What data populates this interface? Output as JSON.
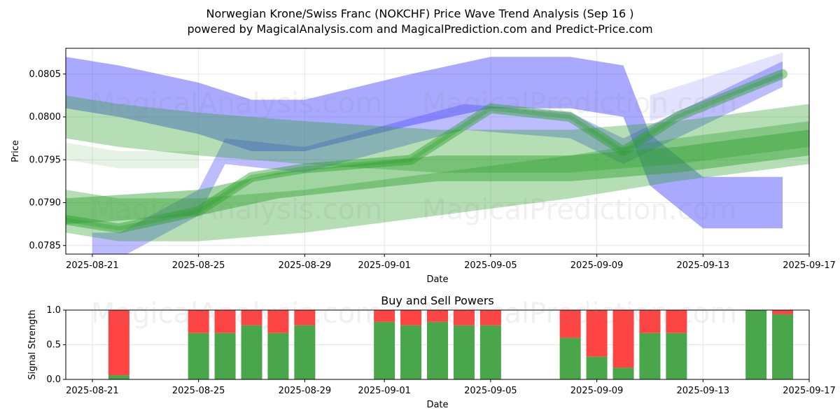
{
  "title_line1": "Norwegian Krone/Swiss Franc (NOKCHF) Price Wave Trend Analysis (Sep 16 )",
  "title_line2": "powered by MagicalAnalysis.com and MagicalPrediction.com and Predict-Price.com",
  "watermarks": [
    "MagicalAnalysis.com",
    "MagicalPrediction.com"
  ],
  "colors": {
    "green": "#2ca02c",
    "blue": "#4040ff",
    "buy": "#4aa64a",
    "sell": "#ff4444"
  },
  "chart_data": [
    {
      "type": "area",
      "xlabel": "Date",
      "ylabel": "Price",
      "ylim": [
        0.0784,
        0.0808
      ],
      "xlim": [
        "2025-08-20",
        "2025-09-17"
      ],
      "x_ticks": [
        "2025-08-21",
        "2025-08-25",
        "2025-08-29",
        "2025-09-01",
        "2025-09-05",
        "2025-09-09",
        "2025-09-13",
        "2025-09-17"
      ],
      "y_ticks": [
        "0.0785",
        "0.0790",
        "0.0795",
        "0.0800",
        "0.0805"
      ],
      "grid": true,
      "bands": [
        {
          "color": "blue",
          "opacity": 0.45,
          "x": [
            "2025-08-20",
            "2025-08-22",
            "2025-08-25",
            "2025-08-27",
            "2025-08-29",
            "2025-09-02",
            "2025-09-05",
            "2025-09-08",
            "2025-09-10",
            "2025-09-11",
            "2025-09-13",
            "2025-09-16"
          ],
          "y": [
            0.0804,
            0.0803,
            0.0801,
            0.0799,
            0.0799,
            0.0802,
            0.0804,
            0.0804,
            0.0803,
            0.0795,
            0.079,
            0.079
          ],
          "width": 0.0006
        },
        {
          "color": "blue",
          "opacity": 0.35,
          "x": [
            "2025-08-21",
            "2025-08-22",
            "2025-08-25",
            "2025-08-26",
            "2025-08-29",
            "2025-09-04",
            "2025-09-08",
            "2025-09-10",
            "2025-09-12",
            "2025-09-16"
          ],
          "y": [
            0.0785,
            0.0785,
            0.079,
            0.0796,
            0.0795,
            0.08,
            0.0799,
            0.0796,
            0.0799,
            0.0805
          ],
          "width": 0.0003
        },
        {
          "color": "blue",
          "opacity": 0.15,
          "x": [
            "2025-09-11",
            "2025-09-13",
            "2025-09-16"
          ],
          "y": [
            0.0801,
            0.0803,
            0.0806
          ],
          "width": 0.0003
        },
        {
          "color": "green",
          "opacity": 0.35,
          "x": [
            "2025-08-20",
            "2025-08-22",
            "2025-08-25",
            "2025-08-29",
            "2025-09-03",
            "2025-09-08",
            "2025-09-12",
            "2025-09-17"
          ],
          "y": [
            0.08,
            0.0799,
            0.0798,
            0.0797,
            0.0796,
            0.0796,
            0.0797,
            0.0799
          ],
          "width": 0.0005
        },
        {
          "color": "green",
          "opacity": 0.35,
          "x": [
            "2025-08-20",
            "2025-08-22",
            "2025-08-25",
            "2025-08-29",
            "2025-09-03",
            "2025-09-08",
            "2025-09-12",
            "2025-09-17"
          ],
          "y": [
            0.0789,
            0.0788,
            0.0788,
            0.0789,
            0.0791,
            0.0793,
            0.0795,
            0.0797
          ],
          "width": 0.0005
        },
        {
          "color": "green",
          "opacity": 0.45,
          "x": [
            "2025-08-20",
            "2025-08-25",
            "2025-08-28",
            "2025-09-03",
            "2025-09-08",
            "2025-09-12",
            "2025-09-17"
          ],
          "y": [
            0.0789,
            0.079,
            0.0792,
            0.0794,
            0.0794,
            0.0795,
            0.0797
          ],
          "width": 0.0003
        },
        {
          "color": "green",
          "opacity": 0.12,
          "x": [
            "2025-08-20",
            "2025-08-22",
            "2025-08-25"
          ],
          "y": [
            0.0796,
            0.0795,
            0.0795
          ],
          "width": 0.0002
        }
      ],
      "wave_lines": [
        {
          "x": [
            "2025-08-20",
            "2025-08-22",
            "2025-08-25",
            "2025-08-27",
            "2025-08-29",
            "2025-09-02",
            "2025-09-03",
            "2025-09-05",
            "2025-09-08",
            "2025-09-10",
            "2025-09-12",
            "2025-09-16"
          ],
          "y": [
            0.0788,
            0.0787,
            0.0789,
            0.0793,
            0.0794,
            0.0795,
            0.0797,
            0.0801,
            0.08,
            0.0796,
            0.08,
            0.0805
          ]
        }
      ]
    },
    {
      "type": "bar",
      "title": "Buy and Sell Powers",
      "xlabel": "Date",
      "ylabel": "Signal Strength",
      "ylim": [
        0,
        1
      ],
      "y_ticks": [
        "0.0",
        "0.5",
        "1.0"
      ],
      "x_ticks": [
        "2025-08-21",
        "2025-08-25",
        "2025-08-29",
        "2025-09-01",
        "2025-09-05",
        "2025-09-09",
        "2025-09-13",
        "2025-09-17"
      ],
      "categories": [
        "2025-08-22",
        "2025-08-25",
        "2025-08-26",
        "2025-08-27",
        "2025-08-28",
        "2025-08-29",
        "2025-09-01",
        "2025-09-02",
        "2025-09-03",
        "2025-09-04",
        "2025-09-05",
        "2025-09-08",
        "2025-09-09",
        "2025-09-10",
        "2025-09-11",
        "2025-09-12",
        "2025-09-15",
        "2025-09-16"
      ],
      "series": [
        {
          "name": "Buy",
          "values": [
            0.06,
            0.67,
            0.67,
            0.78,
            0.67,
            0.78,
            0.83,
            0.78,
            0.83,
            0.78,
            0.78,
            0.6,
            0.33,
            0.17,
            0.67,
            0.67,
            1.0,
            0.94
          ]
        },
        {
          "name": "Sell",
          "values": [
            0.94,
            0.33,
            0.33,
            0.22,
            0.33,
            0.22,
            0.17,
            0.22,
            0.17,
            0.22,
            0.22,
            0.4,
            0.67,
            0.83,
            0.33,
            0.33,
            0.0,
            0.06
          ]
        }
      ]
    }
  ]
}
